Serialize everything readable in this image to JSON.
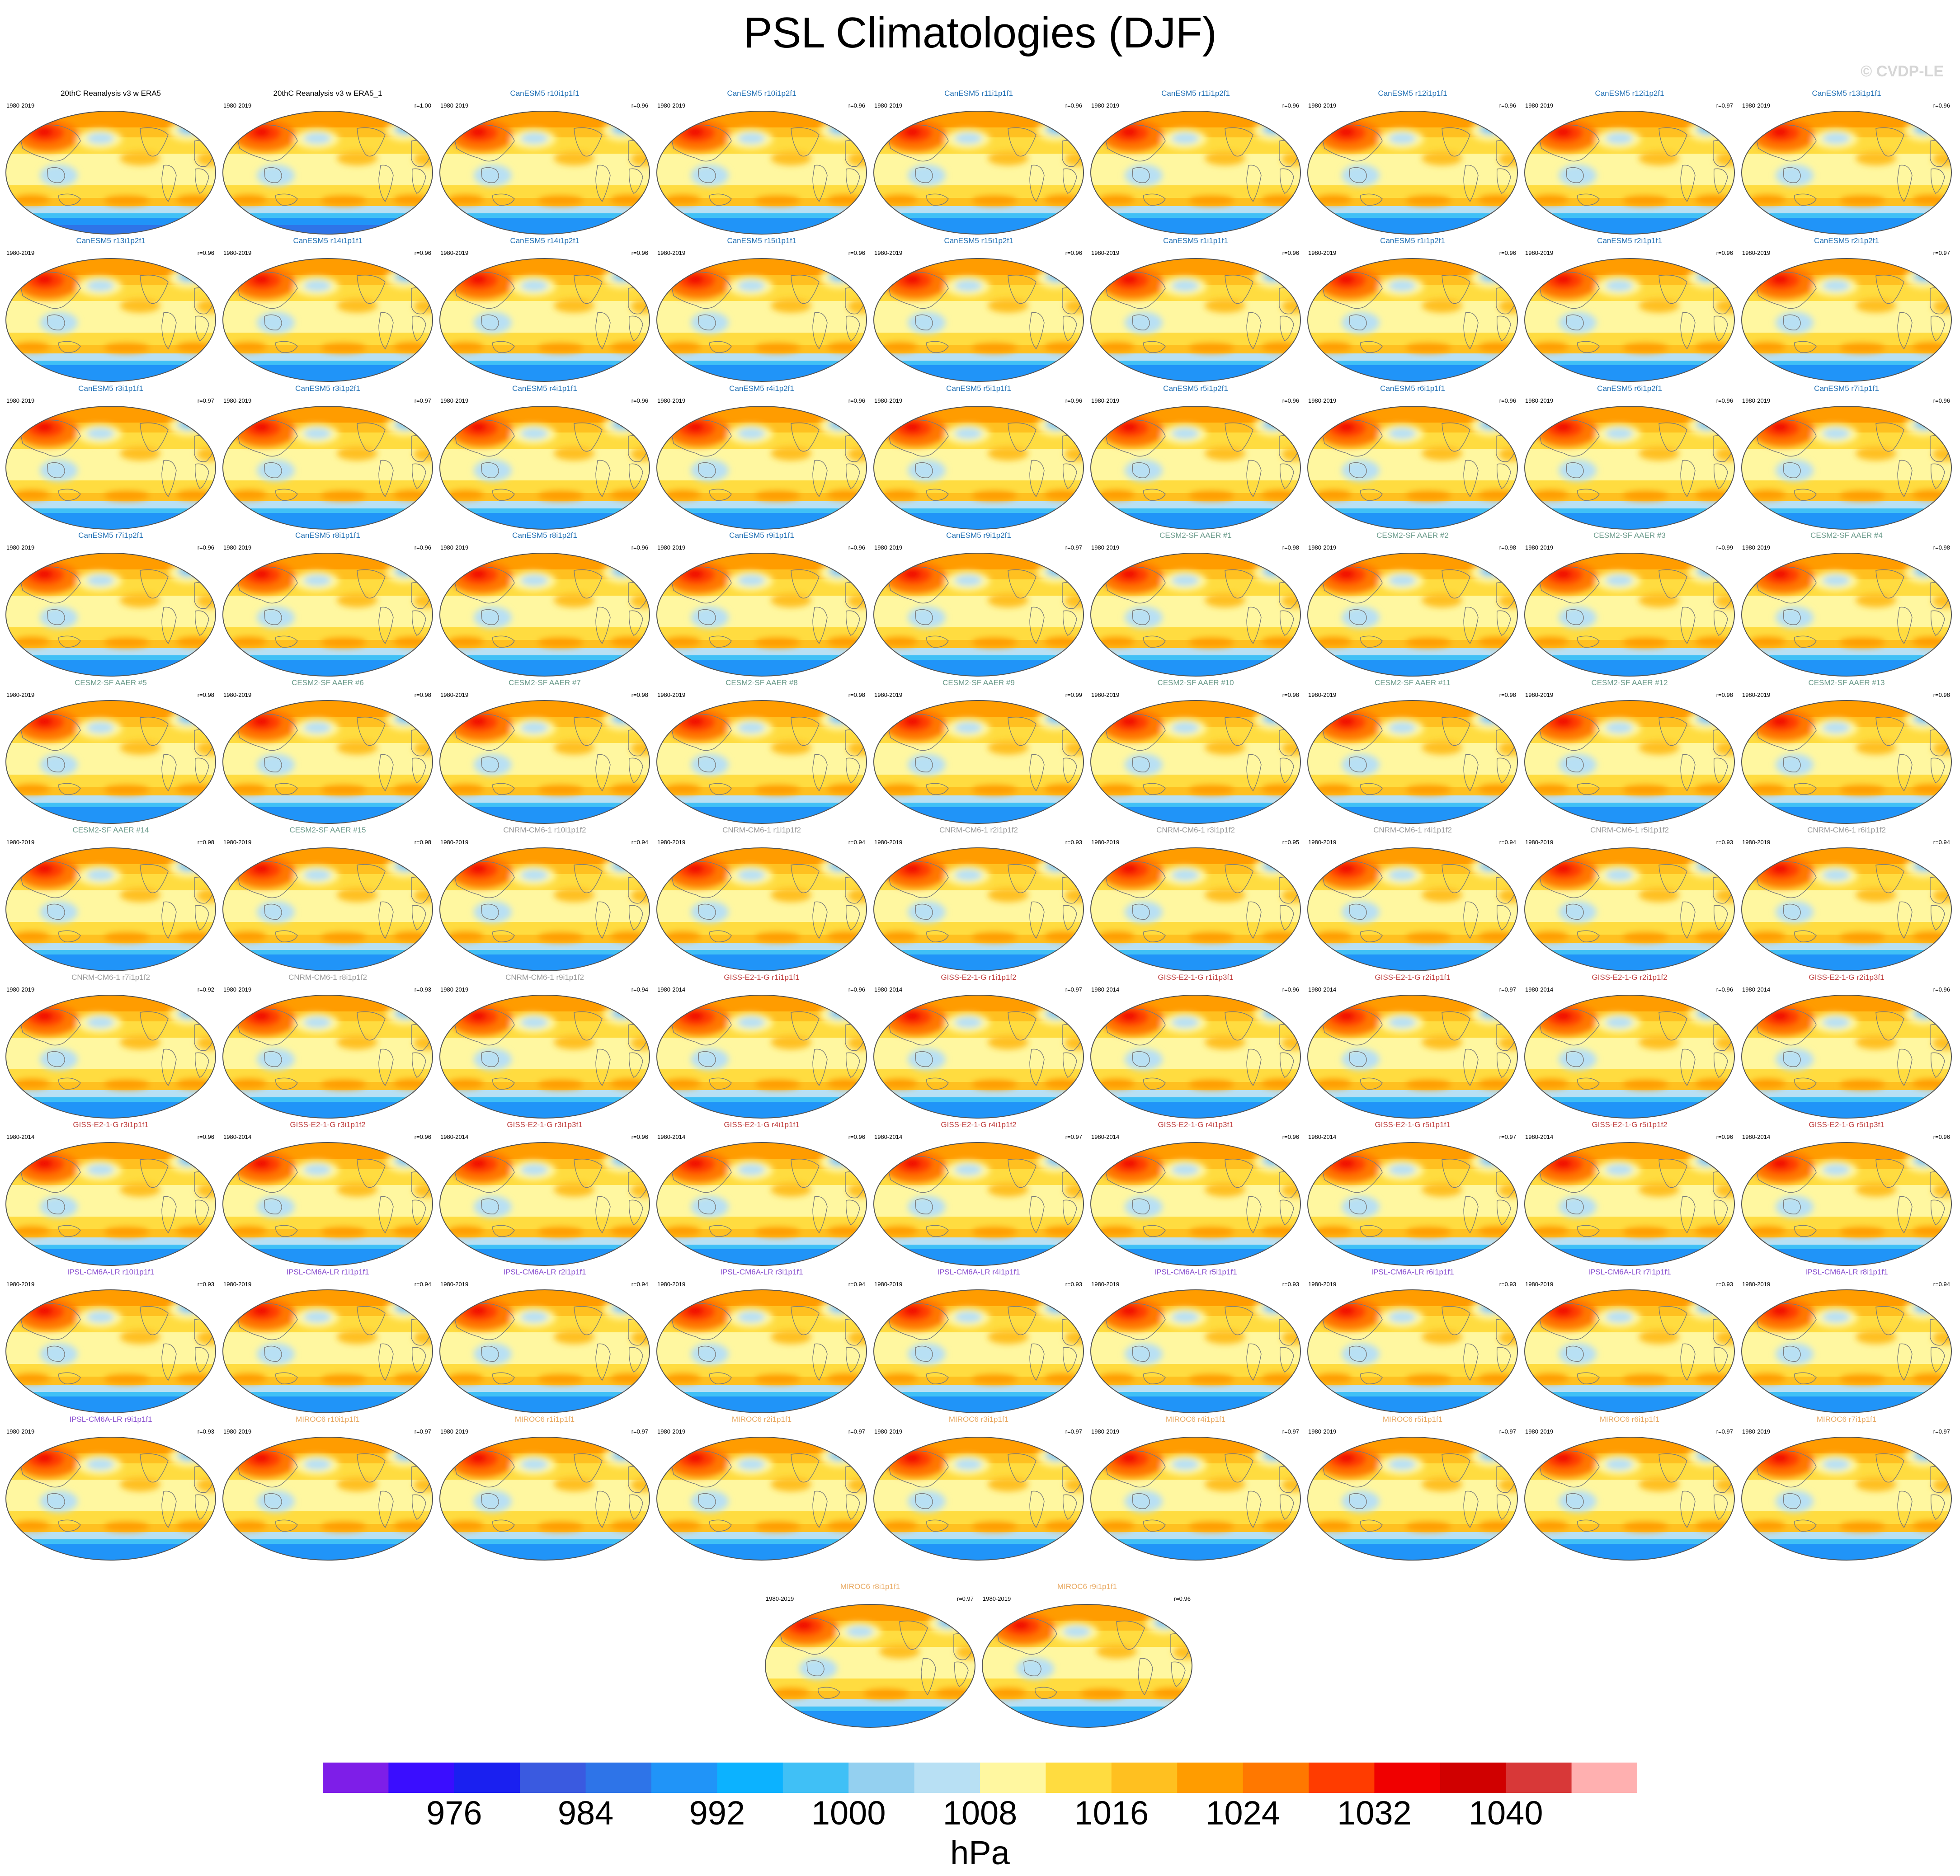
{
  "page": {
    "title": "PSL Climatologies (DJF)",
    "copyright": "© CVDP-LE"
  },
  "chart_data": {
    "type": "heatmap",
    "title": "PSL Climatologies (DJF)",
    "colorbar": {
      "unit": "hPa",
      "tick_labels": [
        "976",
        "984",
        "992",
        "1000",
        "1008",
        "1016",
        "1024",
        "1032",
        "1040"
      ],
      "colors": [
        "#7e1ee8",
        "#3a0dff",
        "#1a20f0",
        "#3a5ae0",
        "#2e74e8",
        "#2094f8",
        "#0cb2ff",
        "#40c0f6",
        "#94d0f0",
        "#b8e0f4",
        "#fff7a0",
        "#ffdc40",
        "#ffc020",
        "#ff9c00",
        "#ff7800",
        "#ff3c00",
        "#f00000",
        "#d00000",
        "#d83838",
        "#ffb0b0"
      ]
    },
    "panels": [
      {
        "title": "20thC Reanalysis v3 w ERA5",
        "years": "1980-2019",
        "corr": "",
        "group": "obs"
      },
      {
        "title": "20thC Reanalysis v3 w ERA5_1",
        "years": "1980-2019",
        "corr": "r=1.00",
        "group": "obs"
      },
      {
        "title": "CanESM5 r10i1p1f1",
        "years": "1980-2019",
        "corr": "r=0.96",
        "group": "canesm"
      },
      {
        "title": "CanESM5 r10i1p2f1",
        "years": "1980-2019",
        "corr": "r=0.96",
        "group": "canesm"
      },
      {
        "title": "CanESM5 r11i1p1f1",
        "years": "1980-2019",
        "corr": "r=0.96",
        "group": "canesm"
      },
      {
        "title": "CanESM5 r11i1p2f1",
        "years": "1980-2019",
        "corr": "r=0.96",
        "group": "canesm"
      },
      {
        "title": "CanESM5 r12i1p1f1",
        "years": "1980-2019",
        "corr": "r=0.96",
        "group": "canesm"
      },
      {
        "title": "CanESM5 r12i1p2f1",
        "years": "1980-2019",
        "corr": "r=0.97",
        "group": "canesm"
      },
      {
        "title": "CanESM5 r13i1p1f1",
        "years": "1980-2019",
        "corr": "r=0.96",
        "group": "canesm"
      },
      {
        "title": "CanESM5 r13i1p2f1",
        "years": "1980-2019",
        "corr": "r=0.96",
        "group": "canesm"
      },
      {
        "title": "CanESM5 r14i1p1f1",
        "years": "1980-2019",
        "corr": "r=0.96",
        "group": "canesm"
      },
      {
        "title": "CanESM5 r14i1p2f1",
        "years": "1980-2019",
        "corr": "r=0.96",
        "group": "canesm"
      },
      {
        "title": "CanESM5 r15i1p1f1",
        "years": "1980-2019",
        "corr": "r=0.96",
        "group": "canesm"
      },
      {
        "title": "CanESM5 r15i1p2f1",
        "years": "1980-2019",
        "corr": "r=0.96",
        "group": "canesm"
      },
      {
        "title": "CanESM5 r1i1p1f1",
        "years": "1980-2019",
        "corr": "r=0.96",
        "group": "canesm"
      },
      {
        "title": "CanESM5 r1i1p2f1",
        "years": "1980-2019",
        "corr": "r=0.96",
        "group": "canesm"
      },
      {
        "title": "CanESM5 r2i1p1f1",
        "years": "1980-2019",
        "corr": "r=0.96",
        "group": "canesm"
      },
      {
        "title": "CanESM5 r2i1p2f1",
        "years": "1980-2019",
        "corr": "r=0.97",
        "group": "canesm"
      },
      {
        "title": "CanESM5 r3i1p1f1",
        "years": "1980-2019",
        "corr": "r=0.97",
        "group": "canesm"
      },
      {
        "title": "CanESM5 r3i1p2f1",
        "years": "1980-2019",
        "corr": "r=0.97",
        "group": "canesm"
      },
      {
        "title": "CanESM5 r4i1p1f1",
        "years": "1980-2019",
        "corr": "r=0.96",
        "group": "canesm"
      },
      {
        "title": "CanESM5 r4i1p2f1",
        "years": "1980-2019",
        "corr": "r=0.96",
        "group": "canesm"
      },
      {
        "title": "CanESM5 r5i1p1f1",
        "years": "1980-2019",
        "corr": "r=0.96",
        "group": "canesm"
      },
      {
        "title": "CanESM5 r5i1p2f1",
        "years": "1980-2019",
        "corr": "r=0.96",
        "group": "canesm"
      },
      {
        "title": "CanESM5 r6i1p1f1",
        "years": "1980-2019",
        "corr": "r=0.96",
        "group": "canesm"
      },
      {
        "title": "CanESM5 r6i1p2f1",
        "years": "1980-2019",
        "corr": "r=0.96",
        "group": "canesm"
      },
      {
        "title": "CanESM5 r7i1p1f1",
        "years": "1980-2019",
        "corr": "r=0.96",
        "group": "canesm"
      },
      {
        "title": "CanESM5 r7i1p2f1",
        "years": "1980-2019",
        "corr": "r=0.96",
        "group": "canesm"
      },
      {
        "title": "CanESM5 r8i1p1f1",
        "years": "1980-2019",
        "corr": "r=0.96",
        "group": "canesm"
      },
      {
        "title": "CanESM5 r8i1p2f1",
        "years": "1980-2019",
        "corr": "r=0.96",
        "group": "canesm"
      },
      {
        "title": "CanESM5 r9i1p1f1",
        "years": "1980-2019",
        "corr": "r=0.96",
        "group": "canesm"
      },
      {
        "title": "CanESM5 r9i1p2f1",
        "years": "1980-2019",
        "corr": "r=0.97",
        "group": "canesm"
      },
      {
        "title": "CESM2-SF AAER #1",
        "years": "1980-2019",
        "corr": "r=0.98",
        "group": "cesm"
      },
      {
        "title": "CESM2-SF AAER #2",
        "years": "1980-2019",
        "corr": "r=0.98",
        "group": "cesm"
      },
      {
        "title": "CESM2-SF AAER #3",
        "years": "1980-2019",
        "corr": "r=0.99",
        "group": "cesm"
      },
      {
        "title": "CESM2-SF AAER #4",
        "years": "1980-2019",
        "corr": "r=0.98",
        "group": "cesm"
      },
      {
        "title": "CESM2-SF AAER #5",
        "years": "1980-2019",
        "corr": "r=0.98",
        "group": "cesm"
      },
      {
        "title": "CESM2-SF AAER #6",
        "years": "1980-2019",
        "corr": "r=0.98",
        "group": "cesm"
      },
      {
        "title": "CESM2-SF AAER #7",
        "years": "1980-2019",
        "corr": "r=0.98",
        "group": "cesm"
      },
      {
        "title": "CESM2-SF AAER #8",
        "years": "1980-2019",
        "corr": "r=0.98",
        "group": "cesm"
      },
      {
        "title": "CESM2-SF AAER #9",
        "years": "1980-2019",
        "corr": "r=0.99",
        "group": "cesm"
      },
      {
        "title": "CESM2-SF AAER #10",
        "years": "1980-2019",
        "corr": "r=0.98",
        "group": "cesm"
      },
      {
        "title": "CESM2-SF AAER #11",
        "years": "1980-2019",
        "corr": "r=0.98",
        "group": "cesm"
      },
      {
        "title": "CESM2-SF AAER #12",
        "years": "1980-2019",
        "corr": "r=0.98",
        "group": "cesm"
      },
      {
        "title": "CESM2-SF AAER #13",
        "years": "1980-2019",
        "corr": "r=0.98",
        "group": "cesm"
      },
      {
        "title": "CESM2-SF AAER #14",
        "years": "1980-2019",
        "corr": "r=0.98",
        "group": "cesm"
      },
      {
        "title": "CESM2-SF AAER #15",
        "years": "1980-2019",
        "corr": "r=0.98",
        "group": "cesm"
      },
      {
        "title": "CNRM-CM6-1 r10i1p1f2",
        "years": "1980-2019",
        "corr": "r=0.94",
        "group": "cnrm"
      },
      {
        "title": "CNRM-CM6-1 r1i1p1f2",
        "years": "1980-2019",
        "corr": "r=0.94",
        "group": "cnrm"
      },
      {
        "title": "CNRM-CM6-1 r2i1p1f2",
        "years": "1980-2019",
        "corr": "r=0.93",
        "group": "cnrm"
      },
      {
        "title": "CNRM-CM6-1 r3i1p1f2",
        "years": "1980-2019",
        "corr": "r=0.95",
        "group": "cnrm"
      },
      {
        "title": "CNRM-CM6-1 r4i1p1f2",
        "years": "1980-2019",
        "corr": "r=0.94",
        "group": "cnrm"
      },
      {
        "title": "CNRM-CM6-1 r5i1p1f2",
        "years": "1980-2019",
        "corr": "r=0.93",
        "group": "cnrm"
      },
      {
        "title": "CNRM-CM6-1 r6i1p1f2",
        "years": "1980-2019",
        "corr": "r=0.94",
        "group": "cnrm"
      },
      {
        "title": "CNRM-CM6-1 r7i1p1f2",
        "years": "1980-2019",
        "corr": "r=0.92",
        "group": "cnrm"
      },
      {
        "title": "CNRM-CM6-1 r8i1p1f2",
        "years": "1980-2019",
        "corr": "r=0.93",
        "group": "cnrm"
      },
      {
        "title": "CNRM-CM6-1 r9i1p1f2",
        "years": "1980-2019",
        "corr": "r=0.94",
        "group": "cnrm"
      },
      {
        "title": "GISS-E2-1-G r1i1p1f1",
        "years": "1980-2014",
        "corr": "r=0.96",
        "group": "giss"
      },
      {
        "title": "GISS-E2-1-G r1i1p1f2",
        "years": "1980-2014",
        "corr": "r=0.97",
        "group": "giss"
      },
      {
        "title": "GISS-E2-1-G r1i1p3f1",
        "years": "1980-2014",
        "corr": "r=0.96",
        "group": "giss"
      },
      {
        "title": "GISS-E2-1-G r2i1p1f1",
        "years": "1980-2014",
        "corr": "r=0.97",
        "group": "giss"
      },
      {
        "title": "GISS-E2-1-G r2i1p1f2",
        "years": "1980-2014",
        "corr": "r=0.96",
        "group": "giss"
      },
      {
        "title": "GISS-E2-1-G r2i1p3f1",
        "years": "1980-2014",
        "corr": "r=0.96",
        "group": "giss"
      },
      {
        "title": "GISS-E2-1-G r3i1p1f1",
        "years": "1980-2014",
        "corr": "r=0.96",
        "group": "giss"
      },
      {
        "title": "GISS-E2-1-G r3i1p1f2",
        "years": "1980-2014",
        "corr": "r=0.96",
        "group": "giss"
      },
      {
        "title": "GISS-E2-1-G r3i1p3f1",
        "years": "1980-2014",
        "corr": "r=0.96",
        "group": "giss"
      },
      {
        "title": "GISS-E2-1-G r4i1p1f1",
        "years": "1980-2014",
        "corr": "r=0.96",
        "group": "giss"
      },
      {
        "title": "GISS-E2-1-G r4i1p1f2",
        "years": "1980-2014",
        "corr": "r=0.97",
        "group": "giss"
      },
      {
        "title": "GISS-E2-1-G r4i1p3f1",
        "years": "1980-2014",
        "corr": "r=0.96",
        "group": "giss"
      },
      {
        "title": "GISS-E2-1-G r5i1p1f1",
        "years": "1980-2014",
        "corr": "r=0.97",
        "group": "giss"
      },
      {
        "title": "GISS-E2-1-G r5i1p1f2",
        "years": "1980-2014",
        "corr": "r=0.96",
        "group": "giss"
      },
      {
        "title": "GISS-E2-1-G r5i1p3f1",
        "years": "1980-2014",
        "corr": "r=0.96",
        "group": "giss"
      },
      {
        "title": "IPSL-CM6A-LR r10i1p1f1",
        "years": "1980-2019",
        "corr": "r=0.93",
        "group": "ipsl"
      },
      {
        "title": "IPSL-CM6A-LR r1i1p1f1",
        "years": "1980-2019",
        "corr": "r=0.94",
        "group": "ipsl"
      },
      {
        "title": "IPSL-CM6A-LR r2i1p1f1",
        "years": "1980-2019",
        "corr": "r=0.94",
        "group": "ipsl"
      },
      {
        "title": "IPSL-CM6A-LR r3i1p1f1",
        "years": "1980-2019",
        "corr": "r=0.94",
        "group": "ipsl"
      },
      {
        "title": "IPSL-CM6A-LR r4i1p1f1",
        "years": "1980-2019",
        "corr": "r=0.93",
        "group": "ipsl"
      },
      {
        "title": "IPSL-CM6A-LR r5i1p1f1",
        "years": "1980-2019",
        "corr": "r=0.93",
        "group": "ipsl"
      },
      {
        "title": "IPSL-CM6A-LR r6i1p1f1",
        "years": "1980-2019",
        "corr": "r=0.93",
        "group": "ipsl"
      },
      {
        "title": "IPSL-CM6A-LR r7i1p1f1",
        "years": "1980-2019",
        "corr": "r=0.93",
        "group": "ipsl"
      },
      {
        "title": "IPSL-CM6A-LR r8i1p1f1",
        "years": "1980-2019",
        "corr": "r=0.94",
        "group": "ipsl"
      },
      {
        "title": "IPSL-CM6A-LR r9i1p1f1",
        "years": "1980-2019",
        "corr": "r=0.93",
        "group": "ipsl"
      },
      {
        "title": "MIROC6 r10i1p1f1",
        "years": "1980-2019",
        "corr": "r=0.97",
        "group": "miroc"
      },
      {
        "title": "MIROC6 r1i1p1f1",
        "years": "1980-2019",
        "corr": "r=0.97",
        "group": "miroc"
      },
      {
        "title": "MIROC6 r2i1p1f1",
        "years": "1980-2019",
        "corr": "r=0.97",
        "group": "miroc"
      },
      {
        "title": "MIROC6 r3i1p1f1",
        "years": "1980-2019",
        "corr": "r=0.97",
        "group": "miroc"
      },
      {
        "title": "MIROC6 r4i1p1f1",
        "years": "1980-2019",
        "corr": "r=0.97",
        "group": "miroc"
      },
      {
        "title": "MIROC6 r5i1p1f1",
        "years": "1980-2019",
        "corr": "r=0.97",
        "group": "miroc"
      },
      {
        "title": "MIROC6 r6i1p1f1",
        "years": "1980-2019",
        "corr": "r=0.97",
        "group": "miroc"
      },
      {
        "title": "MIROC6 r7i1p1f1",
        "years": "1980-2019",
        "corr": "r=0.97",
        "group": "miroc"
      },
      {
        "title": "MIROC6 r8i1p1f1",
        "years": "1980-2019",
        "corr": "r=0.97",
        "group": "miroc"
      },
      {
        "title": "MIROC6 r9i1p1f1",
        "years": "1980-2019",
        "corr": "r=0.96",
        "group": "miroc"
      }
    ],
    "group_colors": {
      "obs": "#000000",
      "canesm": "#1f6fb4",
      "cesm": "#6a9a8a",
      "cnrm": "#9a9a9a",
      "giss": "#c04040",
      "ipsl": "#8a50d0",
      "miroc": "#e8a860"
    }
  }
}
